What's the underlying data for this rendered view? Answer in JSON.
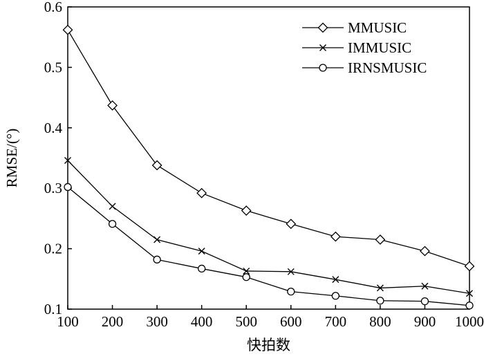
{
  "chart_data": {
    "type": "line",
    "title": "",
    "xlabel": "快拍数",
    "ylabel": "RMSE/(°)",
    "x": [
      100,
      200,
      300,
      400,
      500,
      600,
      700,
      800,
      900,
      1000
    ],
    "xlim": [
      100,
      1000
    ],
    "ylim": [
      0.1,
      0.6
    ],
    "xticks": [
      "100",
      "200",
      "300",
      "400",
      "500",
      "600",
      "700",
      "800",
      "900",
      "1000"
    ],
    "yticks": [
      "0.1",
      "0.2",
      "0.3",
      "0.4",
      "0.5",
      "0.6"
    ],
    "grid": false,
    "legend_position": "top-right",
    "series": [
      {
        "name": "MMUSIC",
        "marker": "diamond",
        "values": [
          0.562,
          0.437,
          0.338,
          0.292,
          0.263,
          0.241,
          0.22,
          0.215,
          0.196,
          0.171
        ]
      },
      {
        "name": "IMMUSIC",
        "marker": "x",
        "values": [
          0.346,
          0.27,
          0.215,
          0.196,
          0.163,
          0.162,
          0.149,
          0.135,
          0.138,
          0.126
        ]
      },
      {
        "name": "IRNSMUSIC",
        "marker": "circle",
        "values": [
          0.302,
          0.241,
          0.182,
          0.167,
          0.153,
          0.129,
          0.122,
          0.114,
          0.113,
          0.106
        ]
      }
    ]
  }
}
